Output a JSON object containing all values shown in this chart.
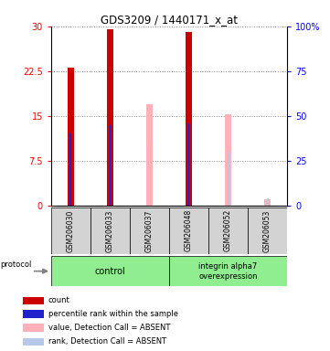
{
  "title": "GDS3209 / 1440171_x_at",
  "samples": [
    "GSM206030",
    "GSM206033",
    "GSM206037",
    "GSM206048",
    "GSM206052",
    "GSM206053"
  ],
  "ctrl_indices": [
    0,
    1,
    2
  ],
  "int_indices": [
    3,
    4,
    5
  ],
  "group_color": "#90ee90",
  "group_label_ctrl": "control",
  "group_label_int": "integrin alpha7\noverexpression",
  "ylim_left": [
    0,
    30
  ],
  "ylim_right": [
    0,
    100
  ],
  "yticks_left": [
    0,
    7.5,
    15,
    22.5,
    30
  ],
  "ytick_labels_left": [
    "0",
    "7.5",
    "15",
    "22.5",
    "30"
  ],
  "yticks_right": [
    0,
    25,
    50,
    75,
    100
  ],
  "ytick_labels_right": [
    "0",
    "25",
    "50",
    "75",
    "100%"
  ],
  "bar_width": 0.18,
  "thin_bar_width": 0.045,
  "red_bars": {
    "values": [
      23.0,
      29.5,
      null,
      29.0,
      null,
      null
    ],
    "color": "#cc0000"
  },
  "blue_bars": {
    "values": [
      12.0,
      13.5,
      null,
      13.8,
      null,
      null
    ],
    "color": "#2222cc"
  },
  "pink_bars": {
    "values": [
      null,
      null,
      17.0,
      null,
      15.2,
      1.0
    ],
    "color": "#ffb0b8"
  },
  "lightblue_bars": {
    "values": [
      null,
      null,
      10.5,
      null,
      9.0,
      1.2
    ],
    "color": "#b8c8e8"
  },
  "grid_color": "#888888",
  "background_color": "#ffffff",
  "sample_box_color": "#d3d3d3",
  "legend_items": [
    {
      "color": "#cc0000",
      "label": "count"
    },
    {
      "color": "#2222cc",
      "label": "percentile rank within the sample"
    },
    {
      "color": "#ffb0b8",
      "label": "value, Detection Call = ABSENT"
    },
    {
      "color": "#b8c8e8",
      "label": "rank, Detection Call = ABSENT"
    }
  ]
}
